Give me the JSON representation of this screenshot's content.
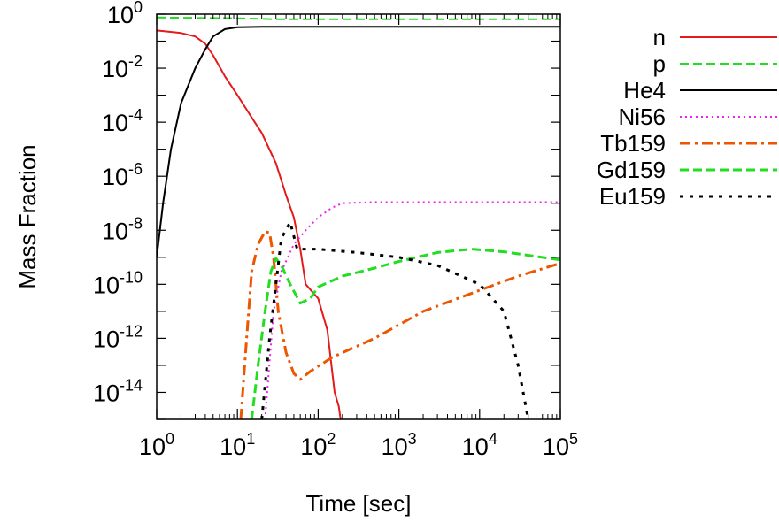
{
  "chart_data": {
    "type": "line",
    "xlabel": "Time [sec]",
    "ylabel": "Mass Fraction",
    "x_scale": "log",
    "y_scale": "log",
    "xlim": [
      1,
      100000
    ],
    "ylim": [
      1e-15,
      1
    ],
    "x_ticks": [
      {
        "base": "10",
        "exp": "0",
        "value": 1
      },
      {
        "base": "10",
        "exp": "1",
        "value": 10
      },
      {
        "base": "10",
        "exp": "2",
        "value": 100
      },
      {
        "base": "10",
        "exp": "3",
        "value": 1000
      },
      {
        "base": "10",
        "exp": "4",
        "value": 10000
      },
      {
        "base": "10",
        "exp": "5",
        "value": 100000
      }
    ],
    "y_ticks": [
      {
        "base": "10",
        "exp": "0",
        "value": 1
      },
      {
        "base": "10",
        "exp": "-2",
        "value": 0.01
      },
      {
        "base": "10",
        "exp": "-4",
        "value": 0.0001
      },
      {
        "base": "10",
        "exp": "-6",
        "value": 1e-06
      },
      {
        "base": "10",
        "exp": "-8",
        "value": 1e-08
      },
      {
        "base": "10",
        "exp": "-10",
        "value": 1e-10
      },
      {
        "base": "10",
        "exp": "-12",
        "value": 1e-12
      },
      {
        "base": "10",
        "exp": "-14",
        "value": 1e-14
      }
    ],
    "grid": false,
    "legend_position": "outside-right-top",
    "series": [
      {
        "name": "n",
        "color": "#e41a1c",
        "dash": "solid",
        "width": 2,
        "points": [
          [
            1,
            0.25
          ],
          [
            2,
            0.2
          ],
          [
            3,
            0.15
          ],
          [
            4,
            0.08
          ],
          [
            5,
            0.03
          ],
          [
            7,
            0.005
          ],
          [
            10,
            0.001
          ],
          [
            15,
            0.00015
          ],
          [
            20,
            4e-05
          ],
          [
            30,
            3e-06
          ],
          [
            40,
            2e-07
          ],
          [
            50,
            3e-08
          ],
          [
            60,
            2e-09
          ],
          [
            70,
            1e-10
          ],
          [
            100,
            3e-11
          ],
          [
            130,
            2e-12
          ],
          [
            160,
            1e-14
          ],
          [
            180,
            3e-15
          ],
          [
            190,
            1e-15
          ]
        ]
      },
      {
        "name": "p",
        "color": "#22dd22",
        "dash": "dashed",
        "width": 2,
        "points": [
          [
            1,
            0.75
          ],
          [
            3,
            0.73
          ],
          [
            5,
            0.72
          ],
          [
            10,
            0.7
          ],
          [
            30,
            0.65
          ],
          [
            100,
            0.65
          ],
          [
            1000,
            0.65
          ],
          [
            100000,
            0.65
          ]
        ]
      },
      {
        "name": "He4",
        "color": "#000000",
        "dash": "solid",
        "width": 2,
        "points": [
          [
            1,
            1e-09
          ],
          [
            1.2,
            1e-07
          ],
          [
            1.5,
            1e-05
          ],
          [
            2,
            0.0005
          ],
          [
            3,
            0.01
          ],
          [
            4,
            0.05
          ],
          [
            5,
            0.15
          ],
          [
            7,
            0.28
          ],
          [
            10,
            0.33
          ],
          [
            20,
            0.34
          ],
          [
            100,
            0.34
          ],
          [
            100000,
            0.34
          ]
        ]
      },
      {
        "name": "Ni56",
        "color": "#ee22ee",
        "dash": "dotted",
        "width": 2,
        "points": [
          [
            22,
            1e-15
          ],
          [
            28,
            1e-11
          ],
          [
            35,
            3e-10
          ],
          [
            50,
            3e-09
          ],
          [
            70,
            1e-08
          ],
          [
            100,
            3e-08
          ],
          [
            150,
            7e-08
          ],
          [
            200,
            1e-07
          ],
          [
            500,
            1.1e-07
          ],
          [
            100000,
            1.1e-07
          ]
        ]
      },
      {
        "name": "Tb159",
        "color": "#ee5500",
        "dash": "dashdot",
        "width": 3,
        "points": [
          [
            11,
            1e-15
          ],
          [
            13,
            1e-12
          ],
          [
            15,
            3e-10
          ],
          [
            18,
            3e-09
          ],
          [
            22,
            9e-09
          ],
          [
            25,
            8e-09
          ],
          [
            28,
            1e-09
          ],
          [
            32,
            1e-11
          ],
          [
            40,
            3e-13
          ],
          [
            50,
            5e-14
          ],
          [
            60,
            3e-14
          ],
          [
            80,
            6e-14
          ],
          [
            150,
            2e-13
          ],
          [
            500,
            1e-12
          ],
          [
            2000,
            1e-11
          ],
          [
            10000,
            6e-11
          ],
          [
            30000,
            2e-10
          ],
          [
            100000,
            6e-10
          ]
        ]
      },
      {
        "name": "Gd159",
        "color": "#22dd22",
        "dash": "dashed",
        "width": 3,
        "points": [
          [
            15,
            1e-15
          ],
          [
            18,
            1e-13
          ],
          [
            22,
            1e-11
          ],
          [
            26,
            3e-10
          ],
          [
            30,
            9e-10
          ],
          [
            35,
            5e-10
          ],
          [
            45,
            1e-10
          ],
          [
            60,
            2e-11
          ],
          [
            80,
            3e-11
          ],
          [
            100,
            8e-11
          ],
          [
            200,
            2e-10
          ],
          [
            500,
            4e-10
          ],
          [
            1000,
            7e-10
          ],
          [
            3000,
            1.5e-09
          ],
          [
            8000,
            2e-09
          ],
          [
            20000,
            1.6e-09
          ],
          [
            100000,
            8e-10
          ]
        ]
      },
      {
        "name": "Eu159",
        "color": "#000000",
        "dash": "dotted-sparse",
        "width": 3,
        "points": [
          [
            20,
            1e-15
          ],
          [
            25,
            1e-12
          ],
          [
            30,
            1e-10
          ],
          [
            35,
            5e-09
          ],
          [
            45,
            2e-08
          ],
          [
            55,
            2e-09
          ],
          [
            100,
            2e-09
          ],
          [
            300,
            1.5e-09
          ],
          [
            1000,
            1e-09
          ],
          [
            3000,
            5e-10
          ],
          [
            10000,
            1e-10
          ],
          [
            20000,
            1e-11
          ],
          [
            30000,
            1e-13
          ],
          [
            40000,
            1e-15
          ]
        ]
      }
    ]
  }
}
